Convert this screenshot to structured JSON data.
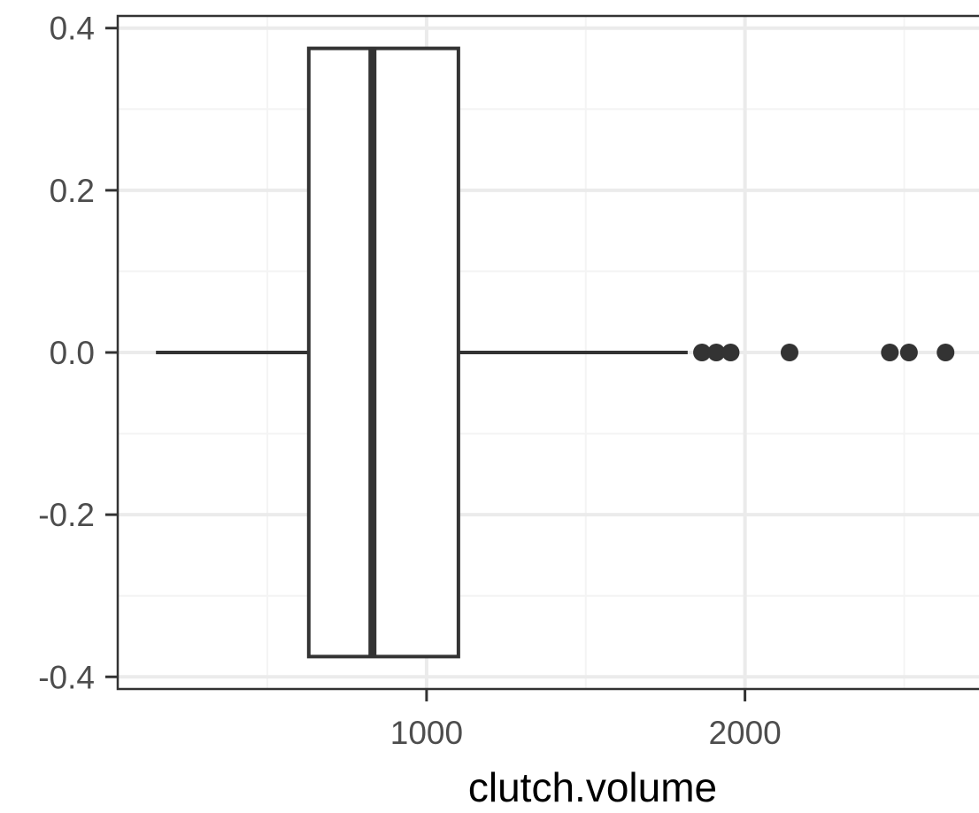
{
  "chart_data": {
    "type": "boxplot",
    "orientation": "horizontal",
    "xlabel": "clutch.volume",
    "ylabel": "",
    "xlim": [
      30,
      2735
    ],
    "ylim": [
      -0.415,
      0.415
    ],
    "x_ticks": [
      1000,
      2000
    ],
    "x_minor_ticks": [
      500,
      1500,
      2500
    ],
    "y_ticks": [
      -0.4,
      -0.2,
      0.0,
      0.2,
      0.4
    ],
    "y_tick_labels": [
      "-0.4",
      "-0.2",
      "0.0",
      "0.2",
      "0.4"
    ],
    "y_minor_ticks": [
      -0.3,
      -0.1,
      0.1,
      0.3
    ],
    "grid": true,
    "box": {
      "y": 0.0,
      "half_height": 0.375,
      "whisker_low": 150,
      "q1": 630,
      "median": 830,
      "q3": 1100,
      "whisker_high": 1820
    },
    "outliers": [
      1865,
      1910,
      1955,
      2140,
      2455,
      2515,
      2630
    ],
    "colors": {
      "box_line": "#333333",
      "box_fill": "#ffffff",
      "grid_major": "#ebebeb",
      "grid_minor": "#f4f4f4",
      "panel_border": "#333333"
    }
  }
}
